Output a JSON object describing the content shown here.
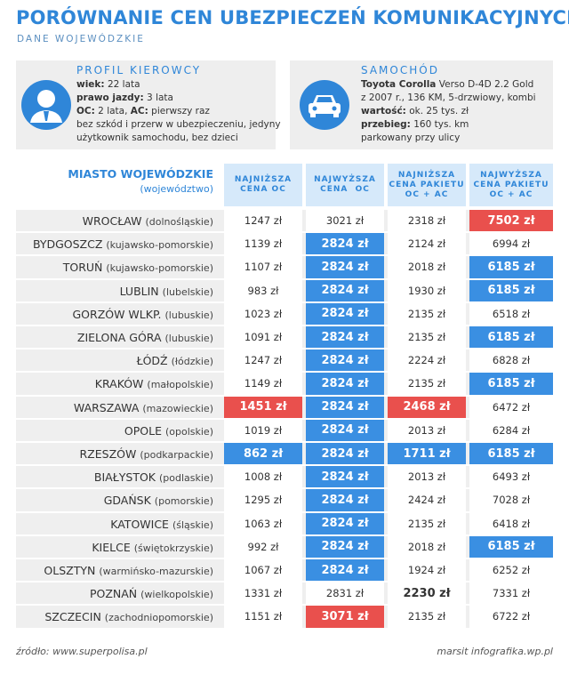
{
  "header": {
    "title": "PORÓWNANIE CEN UBEZPIECZEŃ KOMUNIKACYJNYCH",
    "subtitle": "DANE WOJEWÓDZKIE"
  },
  "profile": {
    "title": "PROFIL KIEROWCY",
    "lines": [
      [
        {
          "text": "wiek:",
          "bold": true
        },
        {
          "text": " 22 lata"
        }
      ],
      [
        {
          "text": "prawo jazdy:",
          "bold": true
        },
        {
          "text": " 3 lata"
        }
      ],
      [
        {
          "text": "OC:",
          "bold": true
        },
        {
          "text": " 2 lata, "
        },
        {
          "text": "AC:",
          "bold": true
        },
        {
          "text": " pierwszy raz"
        }
      ],
      [
        {
          "text": "bez szkód i przerw w ubezpieczeniu, jedyny"
        }
      ],
      [
        {
          "text": "użytkownik samochodu, bez dzieci"
        }
      ]
    ]
  },
  "car": {
    "title": "SAMOCHÓD",
    "lines": [
      [
        {
          "text": "Toyota Corolla",
          "bold": true
        },
        {
          "text": " Verso D-4D 2.2 Gold"
        }
      ],
      [
        {
          "text": "z 2007 r., 136 KM, 5-drzwiowy, kombi"
        }
      ],
      [
        {
          "text": "wartość:",
          "bold": true
        },
        {
          "text": " ok. 25 tys. zł"
        }
      ],
      [
        {
          "text": "przebieg:",
          "bold": true
        },
        {
          "text": " 160 tys. km"
        }
      ],
      [
        {
          "text": "parkowany przy ulicy"
        }
      ]
    ]
  },
  "table": {
    "city_header": {
      "title": "MIASTO WOJEWÓDZKIE",
      "subtitle": "(województwo)"
    },
    "columns": [
      [
        "NAJNIŻSZA",
        "CENA OC"
      ],
      [
        "NAJWYŻSZA",
        "CENA  OC"
      ],
      [
        "NAJNIŻSZA",
        "CENA PAKIETU",
        "OC + AC"
      ],
      [
        "NAJWYŻSZA",
        "CENA PAKIETU",
        "OC + AC"
      ]
    ],
    "rows": [
      {
        "city": "WROCŁAW",
        "region": "(dolnośląskie)",
        "cells": [
          "1247 zł",
          "3021 zł",
          "2318 zł",
          {
            "text": "7502 zł",
            "fill": "#e9504d"
          }
        ]
      },
      {
        "city": "BYDGOSZCZ",
        "region": "(kujawsko-pomorskie)",
        "cells": [
          "1139 zł",
          {
            "text": "2824 zł",
            "fill": "#3a8fe2"
          },
          "2124 zł",
          "6994 zł"
        ]
      },
      {
        "city": "TORUŃ",
        "region": "(kujawsko-pomorskie)",
        "cells": [
          "1107 zł",
          {
            "text": "2824 zł",
            "fill": "#3a8fe2"
          },
          "2018 zł",
          {
            "text": "6185 zł",
            "fill": "#3a8fe2"
          }
        ]
      },
      {
        "city": "LUBLIN",
        "region": "(lubelskie)",
        "cells": [
          "983 zł",
          {
            "text": "2824 zł",
            "fill": "#3a8fe2"
          },
          "1930 zł",
          {
            "text": "6185 zł",
            "fill": "#3a8fe2"
          }
        ]
      },
      {
        "city": "GORZÓW WLKP.",
        "region": "(lubuskie)",
        "cells": [
          "1023 zł",
          {
            "text": "2824 zł",
            "fill": "#3a8fe2"
          },
          "2135 zł",
          "6518 zł"
        ]
      },
      {
        "city": "ZIELONA GÓRA",
        "region": "(lubuskie)",
        "cells": [
          "1091 zł",
          {
            "text": "2824 zł",
            "fill": "#3a8fe2"
          },
          "2135 zł",
          {
            "text": "6185 zł",
            "fill": "#3a8fe2"
          }
        ]
      },
      {
        "city": "ŁÓDŹ",
        "region": "(łódzkie)",
        "cells": [
          "1247 zł",
          {
            "text": "2824 zł",
            "fill": "#3a8fe2"
          },
          "2224 zł",
          "6828 zł"
        ]
      },
      {
        "city": "KRAKÓW",
        "region": "(małopolskie)",
        "cells": [
          "1149 zł",
          {
            "text": "2824 zł",
            "fill": "#3a8fe2"
          },
          "2135 zł",
          {
            "text": "6185 zł",
            "fill": "#3a8fe2"
          }
        ]
      },
      {
        "city": "WARSZAWA",
        "region": "(mazowieckie)",
        "cells": [
          {
            "text": "1451 zł",
            "fill": "#e9504d"
          },
          {
            "text": "2824 zł",
            "fill": "#3a8fe2"
          },
          {
            "text": "2468 zł",
            "fill": "#e9504d"
          },
          "6472 zł"
        ]
      },
      {
        "city": "OPOLE",
        "region": "(opolskie)",
        "cells": [
          "1019 zł",
          {
            "text": "2824 zł",
            "fill": "#3a8fe2"
          },
          "2013 zł",
          "6284 zł"
        ]
      },
      {
        "city": "RZESZÓW",
        "region": "(podkarpackie)",
        "cells": [
          {
            "text": "862 zł",
            "fill": "#3a8fe2"
          },
          {
            "text": "2824 zł",
            "fill": "#3a8fe2"
          },
          {
            "text": "1711 zł",
            "fill": "#3a8fe2"
          },
          {
            "text": "6185 zł",
            "fill": "#3a8fe2"
          }
        ]
      },
      {
        "city": "BIAŁYSTOK",
        "region": "(podlaskie)",
        "cells": [
          "1008 zł",
          {
            "text": "2824 zł",
            "fill": "#3a8fe2"
          },
          "2013 zł",
          "6493 zł"
        ]
      },
      {
        "city": "GDAŃSK",
        "region": "(pomorskie)",
        "cells": [
          "1295 zł",
          {
            "text": "2824 zł",
            "fill": "#3a8fe2"
          },
          "2424 zł",
          "7028 zł"
        ]
      },
      {
        "city": "KATOWICE",
        "region": "(śląskie)",
        "cells": [
          "1063 zł",
          {
            "text": "2824 zł",
            "fill": "#3a8fe2"
          },
          "2135 zł",
          "6418 zł"
        ]
      },
      {
        "city": "KIELCE",
        "region": "(świętokrzyskie)",
        "cells": [
          "992 zł",
          {
            "text": "2824 zł",
            "fill": "#3a8fe2"
          },
          "2018 zł",
          {
            "text": "6185 zł",
            "fill": "#3a8fe2"
          }
        ]
      },
      {
        "city": "OLSZTYN",
        "region": "(warmińsko-mazurskie)",
        "cells": [
          "1067 zł",
          {
            "text": "2824 zł",
            "fill": "#3a8fe2"
          },
          "1924 zł",
          "6252 zł"
        ]
      },
      {
        "city": "POZNAŃ",
        "region": "(wielkopolskie)",
        "cells": [
          "1331 zł",
          "2831 zł",
          {
            "text": "2230 zł",
            "bold": true
          },
          "7331 zł"
        ]
      },
      {
        "city": "SZCZECIN",
        "region": "(zachodniopomorskie)",
        "cells": [
          "1151 zł",
          {
            "text": "3071 zł",
            "fill": "#e9504d"
          },
          "2135 zł",
          "6722 zł"
        ]
      }
    ]
  },
  "footer": {
    "source": "źródło: www.superpolisa.pl",
    "credit": "marsit infografika.wp.pl"
  }
}
